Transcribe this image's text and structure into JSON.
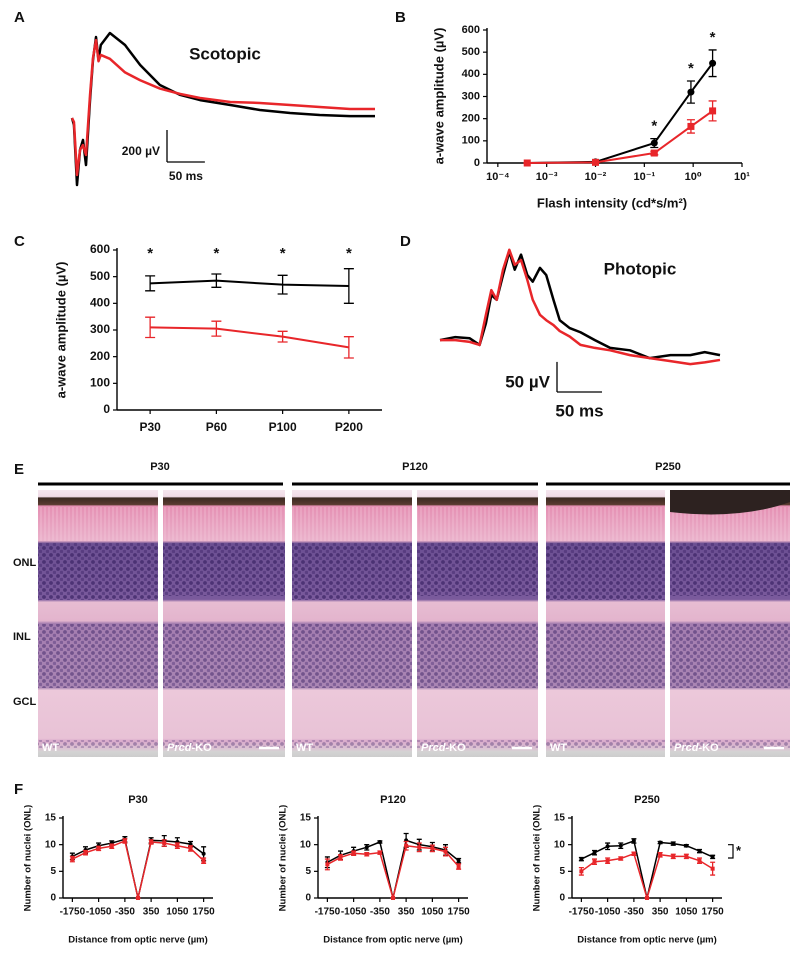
{
  "chart_data": [
    {
      "type": "line",
      "panel": "A",
      "title": "Scotopic",
      "xlim": [
        0,
        400
      ],
      "ylim": [
        -450,
        550
      ],
      "x": [
        0,
        2.6,
        6.6,
        10.6,
        14.5,
        18.5,
        23.8,
        27.7,
        31.7,
        35,
        38,
        50,
        70,
        90,
        116,
        143,
        169,
        209,
        248,
        288,
        327,
        367,
        400
      ],
      "series": [
        {
          "color": "#000000",
          "values": [
            0,
            -44,
            -419,
            -200,
            -137,
            -294,
            112,
            362,
            506,
            362,
            456,
            531,
            456,
            331,
            206,
            144,
            112,
            81,
            50,
            31,
            19,
            12,
            12
          ]
        },
        {
          "color": "#e8262a",
          "values": [
            0,
            -25,
            -356,
            -200,
            -169,
            -231,
            144,
            375,
            487,
            355,
            394,
            370,
            285,
            236,
            184,
            150,
            125,
            100,
            94,
            81,
            69,
            56,
            56
          ]
        }
      ],
      "scale_bar": {
        "y": 200,
        "y_label": "200 µV",
        "x": 50,
        "x_label": "50 ms"
      }
    },
    {
      "type": "line",
      "panel": "B",
      "xscale": "log",
      "xlim": [
        6e-05,
        10
      ],
      "ylim": [
        0,
        600
      ],
      "xticks": [
        {
          "value": 0.0001,
          "label": "10⁻⁴"
        },
        {
          "value": 0.001,
          "label": "10⁻³"
        },
        {
          "value": 0.01,
          "label": "10⁻²"
        },
        {
          "value": 0.1,
          "label": "10⁻¹"
        },
        {
          "value": 1,
          "label": "10⁰"
        },
        {
          "value": 10,
          "label": "10¹"
        }
      ],
      "yticks": [
        0,
        100,
        200,
        300,
        400,
        500,
        600
      ],
      "xlabel": "Flash intensity (cd*s/m²)",
      "ylabel": "a-wave amplitude (µV)",
      "x": [
        0.0004,
        0.01,
        0.16,
        0.9,
        2.5
      ],
      "series": [
        {
          "color": "#000000",
          "marker": "circle",
          "values": [
            0,
            5,
            90,
            320,
            450
          ],
          "errors": [
            0,
            0,
            20,
            50,
            60
          ]
        },
        {
          "color": "#e8262a",
          "marker": "square",
          "values": [
            0,
            3,
            45,
            165,
            235
          ],
          "errors": [
            0,
            0,
            8,
            30,
            45
          ]
        }
      ],
      "significance": [
        null,
        null,
        "*",
        "*",
        "*"
      ]
    },
    {
      "type": "line",
      "panel": "C",
      "ylim": [
        0,
        600
      ],
      "yticks": [
        0,
        100,
        200,
        300,
        400,
        500,
        600
      ],
      "ylabel": "a-wave amplitude (µV)",
      "categories": [
        "P30",
        "P60",
        "P100",
        "P200"
      ],
      "series": [
        {
          "color": "#000000",
          "values": [
            475,
            485,
            470,
            465
          ],
          "errors": [
            28,
            25,
            35,
            65
          ]
        },
        {
          "color": "#e8262a",
          "values": [
            310,
            305,
            275,
            235
          ],
          "errors": [
            38,
            28,
            20,
            40
          ]
        }
      ],
      "significance": [
        "*",
        "*",
        "*",
        "*"
      ]
    },
    {
      "type": "line",
      "panel": "D",
      "title": "Photopic",
      "xlim": [
        0,
        311
      ],
      "ylim": [
        -58,
        158
      ],
      "x": [
        0,
        17,
        33,
        44,
        51,
        57,
        63,
        70,
        77,
        83,
        90,
        97,
        103,
        111,
        118,
        126,
        133,
        144,
        156,
        172,
        189,
        211,
        233,
        256,
        278,
        294,
        311
      ],
      "series": [
        {
          "color": "#000000",
          "values": [
            0,
            5,
            3,
            -8,
            28,
            75,
            67,
            108,
            147,
            117,
            142,
            108,
            97,
            120,
            108,
            67,
            33,
            20,
            13,
            0,
            -13,
            -17,
            -30,
            -25,
            -25,
            -20,
            -25
          ]
        },
        {
          "color": "#e8262a",
          "values": [
            0,
            0,
            -3,
            -8,
            42,
            83,
            67,
            117,
            150,
            125,
            133,
            100,
            67,
            42,
            33,
            25,
            15,
            6,
            -8,
            -13,
            -17,
            -25,
            -30,
            -35,
            -40,
            -37,
            -33
          ]
        }
      ],
      "scale_bar": {
        "y": 50,
        "y_label": "50 µV",
        "x": 50,
        "x_label": "50 ms"
      }
    },
    {
      "type": "line",
      "panel": "F",
      "title": "P30",
      "xlim": [
        -2000,
        2000
      ],
      "ylim": [
        0,
        15
      ],
      "xticks": [
        -1750,
        -1050,
        -350,
        350,
        1050,
        1750
      ],
      "yticks": [
        0,
        5,
        10,
        15
      ],
      "xlabel": "Distance from optic nerve (µm)",
      "ylabel": "Number of nuclei (ONL)",
      "x": [
        -1750,
        -1400,
        -1050,
        -700,
        -350,
        0,
        350,
        700,
        1050,
        1400,
        1750
      ],
      "series": [
        {
          "color": "#000000",
          "marker": "circle",
          "values": [
            7.8,
            9.0,
            9.8,
            10.3,
            11.0,
            0,
            10.8,
            10.7,
            10.5,
            10.1,
            8.3
          ],
          "errors": [
            0.6,
            0.6,
            0.5,
            0.4,
            0.5,
            0,
            0.5,
            1.0,
            0.8,
            0.5,
            1.3
          ]
        },
        {
          "color": "#e8262a",
          "marker": "square",
          "values": [
            7.3,
            8.5,
            9.3,
            9.7,
            10.7,
            0,
            10.5,
            10.3,
            9.8,
            9.3,
            7.0
          ],
          "errors": [
            0.5,
            0.4,
            0.4,
            0.4,
            0.4,
            0,
            0.4,
            0.6,
            0.5,
            0.5,
            0.5
          ]
        }
      ]
    },
    {
      "type": "line",
      "title": "P120",
      "xlim": [
        -2000,
        2000
      ],
      "ylim": [
        0,
        15
      ],
      "xticks": [
        -1750,
        -1050,
        -350,
        350,
        1050,
        1750
      ],
      "yticks": [
        0,
        5,
        10,
        15
      ],
      "xlabel": "Distance from optic nerve (µm)",
      "ylabel": "Number of nuclei (ONL)",
      "x": [
        -1750,
        -1400,
        -1050,
        -700,
        -350,
        0,
        350,
        700,
        1050,
        1400,
        1750
      ],
      "series": [
        {
          "color": "#000000",
          "marker": "circle",
          "values": [
            6.7,
            8.0,
            8.8,
            9.5,
            10.5,
            0,
            10.8,
            10.0,
            9.6,
            9.0,
            7.0
          ],
          "errors": [
            1.0,
            0.8,
            0.7,
            0.5,
            0.2,
            0,
            1.3,
            1.0,
            0.8,
            1.0,
            0.4
          ]
        },
        {
          "color": "#e8262a",
          "marker": "square",
          "values": [
            6.3,
            7.6,
            8.4,
            8.2,
            8.5,
            0,
            9.8,
            9.5,
            9.3,
            8.7,
            5.9
          ],
          "errors": [
            1.0,
            0.5,
            0.4,
            0.3,
            0.3,
            0,
            0.8,
            0.8,
            0.6,
            0.8,
            0.5
          ]
        }
      ]
    },
    {
      "type": "line",
      "title": "P250",
      "xlim": [
        -2000,
        2000
      ],
      "ylim": [
        0,
        15
      ],
      "xticks": [
        -1750,
        -1050,
        -350,
        350,
        1050,
        1750
      ],
      "yticks": [
        0,
        5,
        10,
        15
      ],
      "xlabel": "Distance from optic nerve (µm)",
      "ylabel": "Number of nuclei (ONL)",
      "x": [
        -1750,
        -1400,
        -1050,
        -700,
        -350,
        0,
        350,
        700,
        1050,
        1400,
        1750
      ],
      "series": [
        {
          "color": "#000000",
          "marker": "circle",
          "values": [
            7.3,
            8.5,
            9.7,
            9.8,
            10.7,
            0,
            10.4,
            10.2,
            9.8,
            8.8,
            7.7
          ],
          "errors": [
            0.3,
            0.4,
            0.6,
            0.5,
            0.4,
            0,
            0.2,
            0.3,
            0.2,
            0.3,
            0.3
          ]
        },
        {
          "color": "#e8262a",
          "marker": "square",
          "values": [
            5.0,
            6.8,
            7.0,
            7.4,
            8.3,
            0,
            8.1,
            7.8,
            7.8,
            7.0,
            5.5
          ],
          "errors": [
            0.7,
            0.5,
            0.5,
            0.3,
            0.3,
            0,
            0.4,
            0.4,
            0.4,
            0.5,
            1.2
          ]
        }
      ],
      "annotation": "*"
    }
  ],
  "histology": {
    "panel": "E",
    "columns": [
      "P30",
      "P120",
      "P250"
    ],
    "layers": [
      "ONL",
      "INL",
      "GCL"
    ],
    "images": [
      "WT",
      {
        "gene": "Prcd",
        "suffix": "-KO"
      },
      "WT",
      {
        "gene": "Prcd",
        "suffix": "-KO"
      },
      "WT",
      {
        "gene": "Prcd",
        "suffix": "-KO"
      }
    ]
  }
}
